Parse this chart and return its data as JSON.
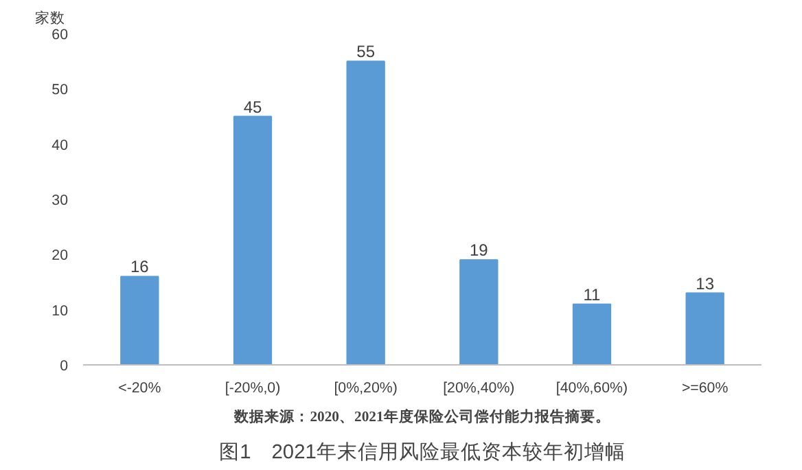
{
  "chart_data": {
    "type": "bar",
    "title": "图1　2021年末信用风险最低资本较年初增幅",
    "ylabel": "家数",
    "categories": [
      "<-20%",
      "[-20%,0)",
      "[0%,20%)",
      "[20%,40%)",
      "[40%,60%)",
      ">=60%"
    ],
    "values": [
      16,
      45,
      55,
      19,
      11,
      13
    ],
    "color": "#5b9bd5",
    "ylim": [
      0,
      60
    ],
    "yticks": [
      0,
      10,
      20,
      30,
      40,
      50,
      60
    ],
    "grid": false,
    "data_labels": true,
    "annotations": [
      "数据来源：2020、2021年度保险公司偿付能力报告摘要。"
    ]
  }
}
